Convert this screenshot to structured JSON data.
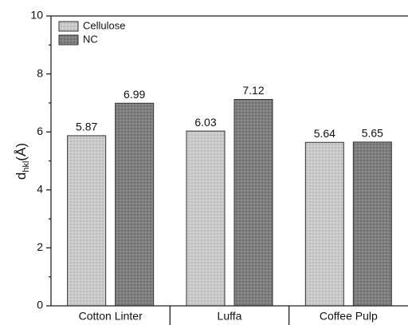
{
  "chart_data": {
    "type": "bar",
    "y_label_parts": [
      "d",
      "hkl",
      "(Å)"
    ],
    "categories": [
      "Cotton Linter",
      "Luffa",
      "Coffee Pulp"
    ],
    "series": [
      {
        "name": "Cellulose",
        "color": "#c9c9c9",
        "values": [
          5.87,
          6.03,
          5.64
        ]
      },
      {
        "name": "NC",
        "color": "#7f7f7f",
        "values": [
          6.99,
          7.12,
          5.65
        ]
      }
    ],
    "ylim": [
      0,
      10
    ],
    "yticks": [
      0,
      2,
      4,
      6,
      8,
      10
    ],
    "legend": "upper left"
  }
}
